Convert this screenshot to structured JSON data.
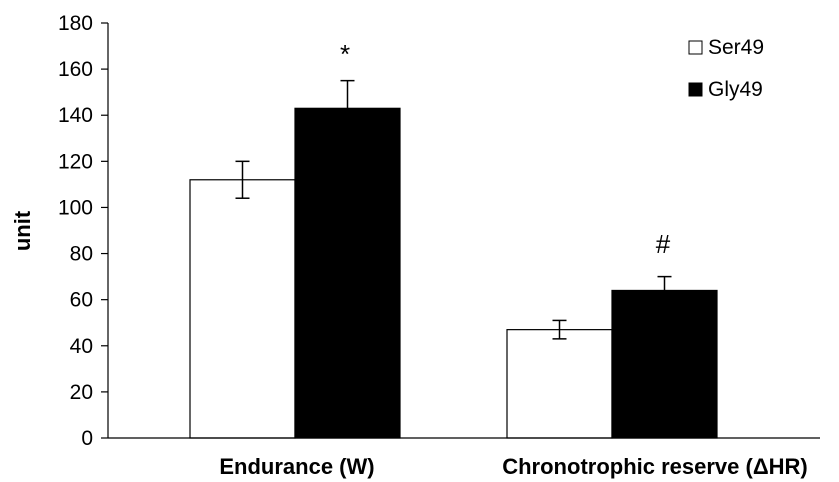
{
  "chart_data": {
    "type": "bar",
    "title": "",
    "xlabel": "",
    "ylabel": "unit",
    "ylim": [
      0,
      180
    ],
    "yticks": [
      "0",
      "20",
      "40",
      "60",
      "80",
      "100",
      "120",
      "140",
      "160",
      "180"
    ],
    "grid": false,
    "legend_position": "top-right",
    "categories": [
      "Endurance (W)",
      "Chronotrophic reserve (ΔHR)"
    ],
    "series": [
      {
        "name": "Ser49",
        "color": "#ffffff",
        "values": [
          112,
          47
        ],
        "errors": [
          8,
          4
        ]
      },
      {
        "name": "Gly49",
        "color": "#000000",
        "values": [
          143,
          64
        ],
        "errors": [
          12,
          6
        ]
      }
    ],
    "annotations": [
      "*",
      "#"
    ]
  }
}
